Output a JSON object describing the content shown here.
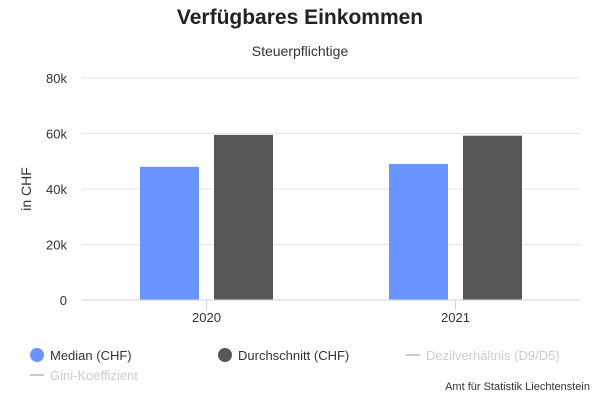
{
  "chart_data": {
    "type": "bar",
    "title": "Verfügbares Einkommen",
    "subtitle": "Steuerpflichtige",
    "ylabel": "in CHF",
    "xlabel": "",
    "categories": [
      "2020",
      "2021"
    ],
    "ylim": [
      0,
      80000
    ],
    "yticks": [
      0,
      20000,
      40000,
      60000,
      80000
    ],
    "ytick_labels": [
      "0",
      "20k",
      "40k",
      "60k",
      "80k"
    ],
    "grid": true,
    "legend_position": "bottom-left",
    "series": [
      {
        "name": "Median (CHF)",
        "color": "#6a95ff",
        "values": [
          48000,
          49000
        ]
      },
      {
        "name": "Durchschnitt (CHF)",
        "color": "#575757",
        "values": [
          59500,
          59200
        ]
      }
    ],
    "inactive_series": [
      {
        "name": "Dezilverhältnis (D9/D5)",
        "color": "#cccccc"
      },
      {
        "name": "Gini-Koeffizient",
        "color": "#cccccc"
      }
    ],
    "credits": "Amt für Statistik Liechtenstein"
  }
}
